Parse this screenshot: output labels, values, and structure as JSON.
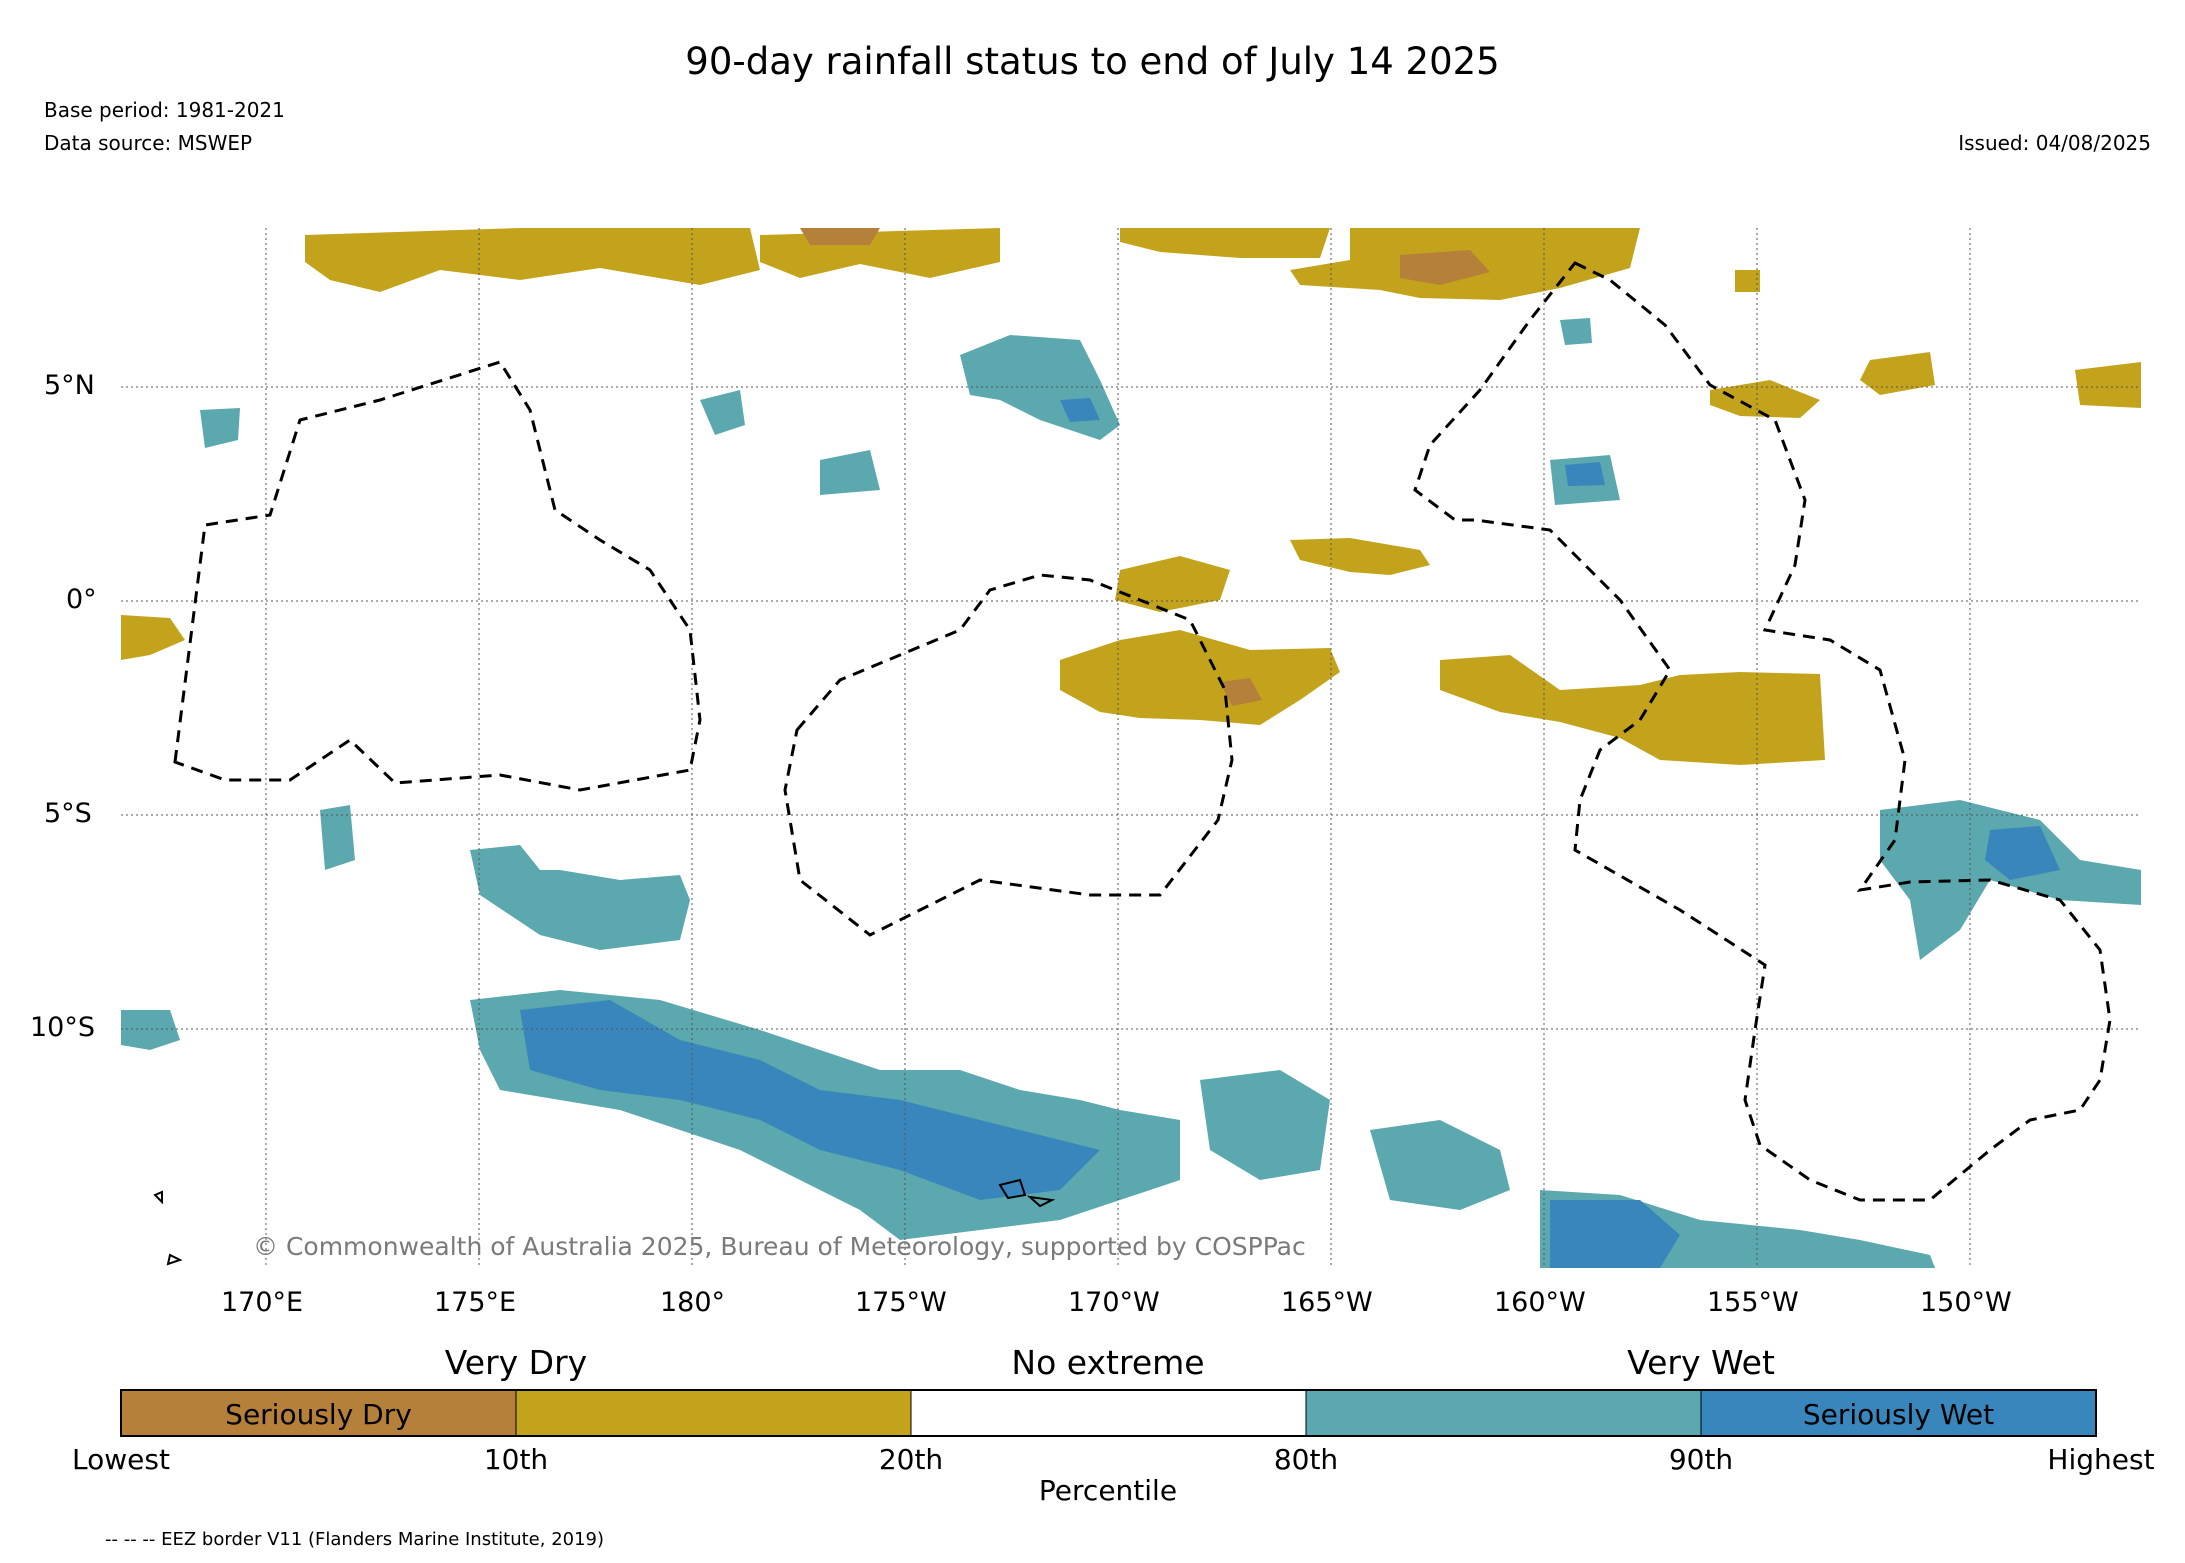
{
  "title": "90-day rainfall status to end of July 14 2025",
  "base_period": "Base period: 1981-2021",
  "data_source": "Data source: MSWEP",
  "issued": "Issued: 04/08/2025",
  "copyright": "© Commonwealth of Australia 2025, Bureau of Meteorology, supported by COSPPac",
  "eez_note": "-- -- -- EEZ border V11 (Flanders Marine Institute, 2019)",
  "map": {
    "lon_labels": [
      "170°E",
      "175°E",
      "180°",
      "175°W",
      "170°W",
      "165°W",
      "160°W",
      "155°W",
      "150°W"
    ],
    "lat_labels": [
      "5°N",
      "0°",
      "5°S",
      "10°S"
    ]
  },
  "legend": {
    "categories": [
      "Very Dry",
      "No extreme",
      "Very Wet"
    ],
    "swatches": [
      {
        "label": "Seriously Dry",
        "color": "#b5803a"
      },
      {
        "label": "",
        "color": "#c4a31c"
      },
      {
        "label": "",
        "color": "#ffffff"
      },
      {
        "label": "",
        "color": "#5ba8ae"
      },
      {
        "label": "Seriously Wet",
        "color": "#3886bb"
      }
    ],
    "percentiles": [
      "Lowest",
      "10th",
      "20th",
      "80th",
      "90th",
      "Highest"
    ],
    "axis_label": "Percentile"
  },
  "colors": {
    "seriously_dry": "#b5803a",
    "very_dry": "#c4a31c",
    "very_wet": "#5ba8ae",
    "seriously_wet": "#3886bb"
  }
}
